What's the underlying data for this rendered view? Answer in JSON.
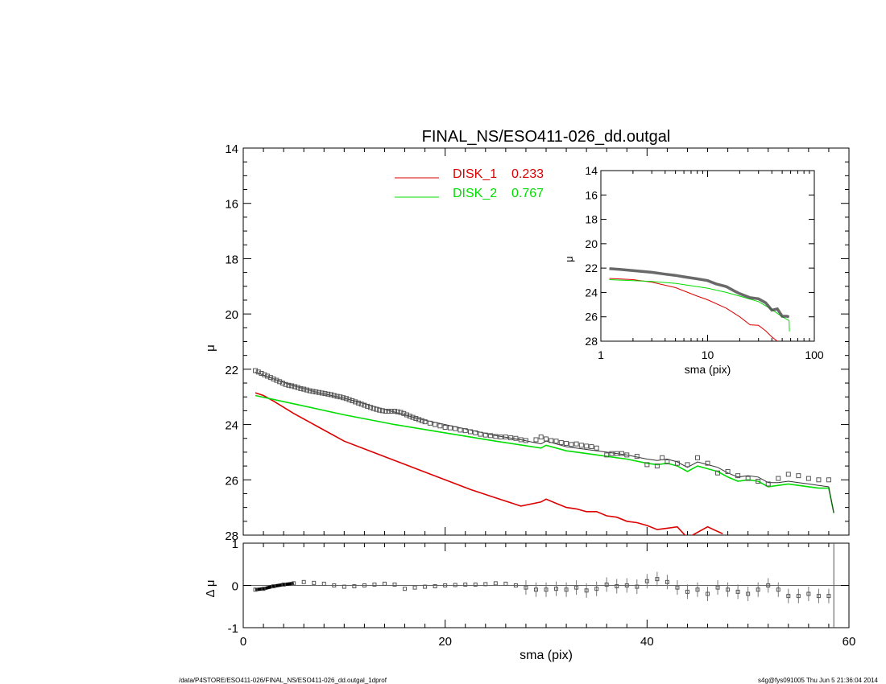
{
  "title": "FINAL_NS/ESO411-026_dd.outgal",
  "footer": {
    "path": "/data/P4STORE/ESO411-026/FINAL_NS/ESO411-026_dd.outgal_1dprof",
    "stamp": "s4g@fys091005  Thu Jun  5 21:36:04 2014"
  },
  "colors": {
    "disk1": "#dd0000",
    "disk2": "#00dd00",
    "model": "#333333",
    "data": "#555555"
  },
  "chart_data": [
    {
      "name": "main_profile",
      "type": "line",
      "xlabel": "sma (pix)",
      "ylabel": "μ",
      "xlim": [
        0,
        60
      ],
      "ylim": [
        28,
        14
      ],
      "y_inverted": true,
      "xticks": [
        "0",
        "20",
        "40",
        "60"
      ],
      "yticks": [
        "14",
        "16",
        "18",
        "20",
        "22",
        "24",
        "26",
        "28"
      ],
      "legend": [
        {
          "label": "DISK_1",
          "value": "0.233",
          "color": "#dd0000"
        },
        {
          "label": "DISK_2",
          "value": "0.767",
          "color": "#00dd00"
        }
      ],
      "series": [
        {
          "name": "DISK_1",
          "color": "#dd0000",
          "x": [
            1.2,
            2,
            3,
            5,
            7.5,
            10,
            12.5,
            15,
            17.5,
            20,
            22.5,
            25,
            27.5,
            29.5,
            30,
            31,
            32,
            33,
            34,
            35,
            36,
            37,
            38,
            39,
            40,
            41,
            42,
            43,
            44,
            45,
            46,
            47.5
          ],
          "y": [
            22.85,
            22.95,
            23.15,
            23.6,
            24.1,
            24.6,
            24.95,
            25.3,
            25.65,
            26.0,
            26.35,
            26.65,
            26.95,
            26.8,
            26.7,
            26.85,
            27.0,
            27.05,
            27.15,
            27.15,
            27.3,
            27.35,
            27.5,
            27.55,
            27.65,
            27.8,
            27.75,
            27.7,
            28.1,
            27.9,
            27.7,
            27.95
          ]
        },
        {
          "name": "DISK_2",
          "color": "#00dd00",
          "x": [
            1.2,
            5,
            10,
            15,
            20,
            25,
            29.5,
            30,
            32,
            34,
            36,
            38,
            40,
            41,
            42,
            43,
            44,
            45,
            46,
            47,
            48,
            49,
            50,
            51,
            52,
            53,
            54,
            55,
            56,
            57,
            58,
            58.5
          ],
          "y": [
            22.95,
            23.25,
            23.65,
            24.0,
            24.3,
            24.6,
            24.85,
            24.75,
            24.95,
            25.05,
            25.15,
            25.25,
            25.4,
            25.45,
            25.4,
            25.5,
            25.7,
            25.5,
            25.6,
            25.7,
            25.9,
            26.05,
            26.0,
            26.05,
            26.25,
            26.2,
            26.15,
            26.2,
            26.25,
            26.3,
            26.3,
            27.2
          ]
        },
        {
          "name": "model",
          "color": "#333333",
          "x": [
            1.2,
            3,
            5,
            7.5,
            10,
            12.5,
            15,
            17.5,
            20,
            22.5,
            25,
            27.5,
            29.5,
            30,
            32,
            34,
            36,
            38,
            40,
            41,
            42,
            43,
            44,
            45,
            46,
            47,
            48,
            49,
            50,
            51,
            52,
            53,
            54,
            55,
            56,
            57,
            58,
            58.5
          ],
          "y": [
            22.1,
            22.35,
            22.6,
            22.85,
            23.05,
            23.3,
            23.55,
            23.8,
            24.0,
            24.2,
            24.4,
            24.55,
            24.7,
            24.6,
            24.8,
            24.9,
            25.0,
            25.1,
            25.25,
            25.3,
            25.25,
            25.35,
            25.55,
            25.35,
            25.45,
            25.55,
            25.75,
            25.9,
            25.85,
            25.9,
            26.1,
            26.1,
            26.05,
            26.1,
            26.15,
            26.2,
            26.25,
            27.2
          ]
        },
        {
          "name": "data",
          "color": "#555555",
          "marker": "square",
          "x": [
            1.2,
            1.5,
            1.8,
            2.1,
            2.4,
            2.7,
            3.0,
            3.3,
            3.6,
            3.9,
            4.2,
            4.5,
            4.8,
            5.1,
            5.4,
            5.7,
            6.0,
            6.3,
            6.6,
            6.9,
            7.2,
            7.5,
            7.8,
            8.1,
            8.4,
            8.7,
            9.0,
            9.3,
            9.6,
            9.9,
            10.2,
            10.5,
            10.8,
            11.1,
            11.4,
            11.7,
            12.0,
            12.3,
            12.6,
            12.9,
            13.2,
            13.5,
            13.8,
            14.1,
            14.4,
            14.7,
            15.0,
            15.3,
            15.6,
            15.9,
            16.2,
            16.5,
            16.8,
            17.1,
            17.4,
            17.7,
            18.0,
            18.5,
            19.0,
            19.5,
            20.0,
            20.5,
            21.0,
            21.5,
            22.0,
            22.5,
            23.0,
            23.5,
            24.0,
            24.5,
            25.0,
            25.5,
            26.0,
            26.5,
            27.0,
            27.5,
            28.0,
            29.0,
            29.5,
            30.0,
            30.5,
            31.0,
            31.5,
            32.0,
            32.5,
            33.0,
            33.5,
            34.0,
            34.5,
            35.0,
            36.0,
            36.5,
            37.0,
            37.5,
            38.0,
            39.0,
            40.0,
            41.0,
            41.5,
            42.0,
            43.0,
            44.0,
            45.0,
            46.0,
            47.0,
            48.0,
            49.0,
            50.0,
            51.0,
            52.0,
            53.0,
            54.0,
            55.0,
            56.0,
            57.0,
            58.0
          ],
          "y": [
            22.05,
            22.1,
            22.15,
            22.2,
            22.25,
            22.3,
            22.35,
            22.4,
            22.45,
            22.5,
            22.55,
            22.58,
            22.6,
            22.63,
            22.66,
            22.7,
            22.72,
            22.75,
            22.78,
            22.8,
            22.82,
            22.84,
            22.86,
            22.88,
            22.9,
            22.92,
            22.95,
            22.98,
            23.0,
            23.03,
            23.06,
            23.1,
            23.14,
            23.18,
            23.22,
            23.26,
            23.3,
            23.34,
            23.38,
            23.42,
            23.45,
            23.48,
            23.5,
            23.52,
            23.52,
            23.52,
            23.52,
            23.54,
            23.56,
            23.6,
            23.65,
            23.7,
            23.74,
            23.78,
            23.82,
            23.86,
            23.9,
            23.95,
            24.0,
            24.05,
            24.1,
            24.12,
            24.15,
            24.2,
            24.22,
            24.26,
            24.3,
            24.35,
            24.38,
            24.4,
            24.43,
            24.45,
            24.45,
            24.48,
            24.5,
            24.55,
            24.58,
            24.55,
            24.45,
            24.52,
            24.58,
            24.6,
            24.65,
            24.68,
            24.72,
            24.7,
            24.75,
            24.78,
            24.8,
            24.85,
            25.1,
            25.05,
            25.05,
            25.05,
            25.1,
            25.15,
            25.45,
            25.5,
            25.2,
            25.35,
            25.4,
            25.45,
            25.2,
            25.4,
            25.75,
            25.7,
            25.85,
            25.95,
            26.05,
            26.15,
            25.95,
            25.8,
            25.85,
            25.95,
            26.0,
            26.0
          ]
        }
      ]
    },
    {
      "name": "inset_log",
      "type": "line",
      "xlabel": "sma (pix)",
      "ylabel": "μ",
      "x_scale": "log",
      "xlim": [
        1,
        100
      ],
      "ylim": [
        28,
        14
      ],
      "y_inverted": true,
      "xticks": [
        "1",
        "10",
        "100"
      ],
      "yticks": [
        "14",
        "16",
        "18",
        "20",
        "22",
        "24",
        "26",
        "28"
      ],
      "series": [
        {
          "name": "DISK_1",
          "color": "#dd0000",
          "x": [
            1.2,
            2,
            3,
            5,
            8,
            10,
            15,
            20,
            25,
            30,
            35,
            40,
            45
          ],
          "y": [
            22.85,
            22.95,
            23.15,
            23.6,
            24.3,
            24.6,
            25.3,
            26.0,
            26.65,
            26.7,
            27.15,
            27.65,
            28.0
          ]
        },
        {
          "name": "DISK_2",
          "color": "#00dd00",
          "x": [
            1.2,
            3,
            5,
            10,
            15,
            20,
            30,
            40,
            50,
            58,
            58.5
          ],
          "y": [
            22.95,
            23.1,
            23.25,
            23.65,
            24.0,
            24.3,
            24.75,
            25.4,
            26.0,
            26.3,
            27.2
          ]
        },
        {
          "name": "data",
          "color": "#444444",
          "x": [
            1.2,
            1.5,
            2,
            3,
            4,
            5,
            6,
            8,
            10,
            12,
            15,
            18,
            20,
            25,
            30,
            35,
            40,
            45,
            50,
            55,
            58
          ],
          "y": [
            22.05,
            22.1,
            22.2,
            22.35,
            22.5,
            22.6,
            22.72,
            22.88,
            23.03,
            23.3,
            23.52,
            23.9,
            24.1,
            24.43,
            24.52,
            24.85,
            25.45,
            25.35,
            25.95,
            25.95,
            26.0
          ]
        }
      ]
    },
    {
      "name": "residuals",
      "type": "scatter",
      "xlabel": "sma (pix)",
      "ylabel": "Δ μ",
      "xlim": [
        0,
        60
      ],
      "ylim": [
        -1,
        1
      ],
      "xticks": [
        "0",
        "20",
        "40",
        "60"
      ],
      "yticks": [
        "1",
        "0",
        "-1"
      ],
      "series": [
        {
          "name": "residual",
          "color": "#555555",
          "x": [
            1.2,
            2,
            3,
            4,
            5,
            6,
            7,
            8,
            9,
            10,
            11,
            12,
            13,
            14,
            15,
            16,
            17,
            18,
            19,
            20,
            21,
            22,
            23,
            24,
            25,
            26,
            27,
            28,
            29,
            30,
            31,
            32,
            33,
            34,
            35,
            36,
            37,
            38,
            39,
            40,
            41,
            42,
            43,
            44,
            45,
            46,
            47,
            48,
            49,
            50,
            51,
            52,
            53,
            54,
            55,
            56,
            57,
            58
          ],
          "y": [
            -0.1,
            -0.08,
            -0.02,
            0.02,
            0.05,
            0.08,
            0.06,
            0.04,
            0.0,
            -0.03,
            -0.02,
            0.0,
            0.02,
            0.04,
            0.02,
            -0.08,
            -0.05,
            -0.03,
            -0.02,
            0.0,
            0.01,
            0.02,
            0.02,
            0.03,
            0.05,
            0.04,
            0.0,
            -0.05,
            -0.1,
            -0.1,
            -0.08,
            -0.1,
            -0.05,
            -0.12,
            -0.08,
            0.02,
            -0.02,
            0.0,
            -0.03,
            0.1,
            0.15,
            0.08,
            -0.05,
            -0.15,
            -0.1,
            -0.2,
            -0.05,
            -0.1,
            -0.15,
            -0.2,
            -0.1,
            0.0,
            -0.1,
            -0.25,
            -0.25,
            -0.2,
            -0.25,
            -0.25
          ]
        }
      ]
    }
  ]
}
